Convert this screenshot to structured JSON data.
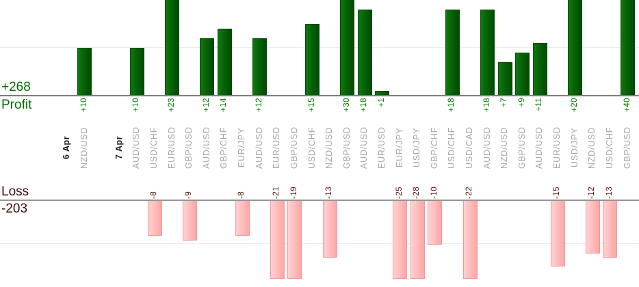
{
  "report": {
    "profit_total": "+268",
    "profit_label": "Profit",
    "loss_label": "Loss",
    "loss_total": "-203"
  },
  "colors": {
    "profit_text": "#006e00",
    "profit_value_text": "#008000",
    "loss_text": "#420b06",
    "loss_value_text": "#5a120b",
    "pair_label": "#a6a6a6",
    "date_label": "#1b1b1b",
    "profit_bar_light": "#0d7a0d",
    "profit_bar_mid": "#076207",
    "profit_bar_dark": "#024a02",
    "profit_bar_border": "#054a05",
    "loss_bar_light": "#ffd2d2",
    "loss_bar_dark": "#ffa6a6",
    "loss_bar_border": "#f09898",
    "profit_axis_line": "#7c7c7c",
    "loss_axis_line": "#949494",
    "gridline": "#ededed"
  },
  "chart_data": {
    "type": "bar",
    "orientation": "vertical",
    "grid": "horizontal-only",
    "panels": [
      {
        "name": "Profit",
        "total": 268,
        "total_label": "+268",
        "gridline_value": 10,
        "visible_axis_max": 20
      },
      {
        "name": "Loss",
        "total": -203,
        "total_label": "-203",
        "gridline_value": -10,
        "visible_axis_min": -18
      }
    ],
    "columns": [
      {
        "label": "6 Apr",
        "kind": "date"
      },
      {
        "label": "NZD/USD",
        "profit": 10
      },
      {
        "label": "",
        "kind": "spacer"
      },
      {
        "label": "7 Apr",
        "kind": "date"
      },
      {
        "label": "AUD/USD",
        "profit": 10
      },
      {
        "label": "USD/CHF",
        "loss": -8
      },
      {
        "label": "EUR/USD",
        "profit": 23
      },
      {
        "label": "GBP/USD",
        "loss": -9
      },
      {
        "label": "AUD/USD",
        "profit": 12
      },
      {
        "label": "GBP/CHF",
        "profit": 14
      },
      {
        "label": "EUR/JPY",
        "loss": -8
      },
      {
        "label": "AUD/USD",
        "profit": 12
      },
      {
        "label": "EUR/USD",
        "loss": -21
      },
      {
        "label": "GBP/USD",
        "loss": -19
      },
      {
        "label": "USD/CHF",
        "profit": 15
      },
      {
        "label": "NZD/USD",
        "loss": -13
      },
      {
        "label": "GBP/USD",
        "profit": 30
      },
      {
        "label": "AUD/USD",
        "profit": 18
      },
      {
        "label": "EUR/USD",
        "profit": 1
      },
      {
        "label": "EUR/JPY",
        "loss": -25
      },
      {
        "label": "USD/JPY",
        "loss": -28
      },
      {
        "label": "GBP/CHF",
        "loss": -10
      },
      {
        "label": "USD/CHF",
        "profit": 18
      },
      {
        "label": "USD/CAD",
        "loss": -22
      },
      {
        "label": "AUD/USD",
        "profit": 18
      },
      {
        "label": "NZD/USD",
        "profit": 7
      },
      {
        "label": "GBP/USD",
        "profit": 9
      },
      {
        "label": "AUD/USD",
        "profit": 11
      },
      {
        "label": "EUR/USD",
        "loss": -15
      },
      {
        "label": "USD/JPY",
        "profit": 20
      },
      {
        "label": "NZD/USD",
        "loss": -12
      },
      {
        "label": "USD/CHF",
        "loss": -13
      },
      {
        "label": "GBP/USD",
        "profit": 40
      }
    ]
  }
}
